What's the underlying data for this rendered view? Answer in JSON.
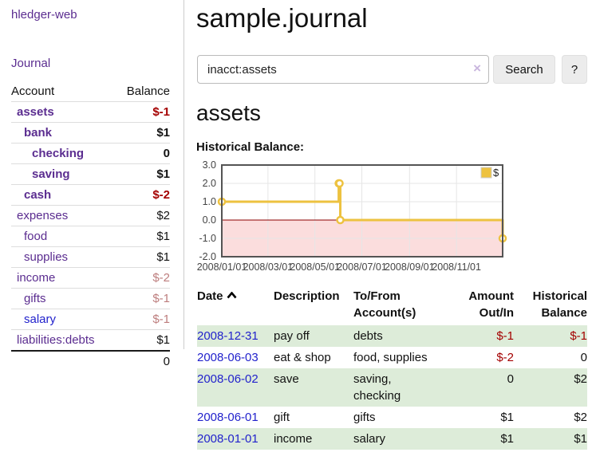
{
  "app_title": "hledger-web",
  "sidebar": {
    "nav_journal": "Journal",
    "accounts": {
      "header_account": "Account",
      "header_balance": "Balance",
      "rows": [
        {
          "name": "assets",
          "balance": "$-1",
          "depth": 1,
          "bold": true,
          "balance_style": "neg-strong",
          "link_style": "purple"
        },
        {
          "name": "bank",
          "balance": "$1",
          "depth": 2,
          "bold": true,
          "balance_style": "normal",
          "link_style": "purple"
        },
        {
          "name": "checking",
          "balance": "0",
          "depth": 3,
          "bold": true,
          "balance_style": "normal",
          "link_style": "purple"
        },
        {
          "name": "saving",
          "balance": "$1",
          "depth": 3,
          "bold": true,
          "balance_style": "normal",
          "link_style": "purple"
        },
        {
          "name": "cash",
          "balance": "$-2",
          "depth": 2,
          "bold": true,
          "balance_style": "neg-strong",
          "link_style": "purple"
        },
        {
          "name": "expenses",
          "balance": "$2",
          "depth": 1,
          "bold": false,
          "balance_style": "normal",
          "link_style": "purple"
        },
        {
          "name": "food",
          "balance": "$1",
          "depth": 2,
          "bold": false,
          "balance_style": "normal",
          "link_style": "purple"
        },
        {
          "name": "supplies",
          "balance": "$1",
          "depth": 2,
          "bold": false,
          "balance_style": "normal",
          "link_style": "purple"
        },
        {
          "name": "income",
          "balance": "$-2",
          "depth": 1,
          "bold": false,
          "balance_style": "neg-muted",
          "link_style": "purple"
        },
        {
          "name": "gifts",
          "balance": "$-1",
          "depth": 2,
          "bold": false,
          "balance_style": "neg-muted",
          "link_style": "purple"
        },
        {
          "name": "salary",
          "balance": "$-1",
          "depth": 2,
          "bold": false,
          "balance_style": "neg-muted",
          "link_style": "blue"
        },
        {
          "name": "liabilities:debts",
          "balance": "$1",
          "depth": 1,
          "bold": false,
          "balance_style": "normal",
          "link_style": "purple"
        }
      ],
      "total": "0"
    }
  },
  "main": {
    "title": "sample.journal",
    "search": {
      "value": "inacct:assets",
      "clear_icon": "×",
      "button_label": "Search",
      "help_label": "?"
    },
    "account_heading": "assets",
    "chart_title": "Historical Balance:"
  },
  "chart_data": {
    "type": "line",
    "style": "step",
    "title": "Historical Balance",
    "series": [
      {
        "name": "$",
        "color": "#edc240",
        "points": [
          {
            "date": "2008-01-01",
            "value": 1
          },
          {
            "date": "2008-06-01",
            "value": 2
          },
          {
            "date": "2008-06-02",
            "value": 2
          },
          {
            "date": "2008-06-03",
            "value": 0
          },
          {
            "date": "2008-12-31",
            "value": -1
          }
        ]
      }
    ],
    "x_range": [
      "2008-01-01",
      "2008-12-31"
    ],
    "x_ticks": [
      "2008/01/01",
      "2008/03/01",
      "2008/05/01",
      "2008/07/01",
      "2008/09/01",
      "2008/11/01"
    ],
    "y_ticks": [
      3.0,
      2.0,
      1.0,
      0.0,
      -1.0,
      -2.0
    ],
    "ylim": [
      -2,
      3
    ],
    "grid": true,
    "legend": {
      "label": "$",
      "position": "top-right"
    },
    "negative_region": {
      "from": 0,
      "to": -2,
      "fill": "#fbdddd",
      "line_color": "#8b0000"
    }
  },
  "register": {
    "headers": {
      "date": "Date",
      "sort_icon": "chevron-up",
      "description": "Description",
      "accounts": "To/From Account(s)",
      "amount": "Amount Out/In",
      "balance": "Historical Balance"
    },
    "rows": [
      {
        "date": "2008-12-31",
        "description": "pay off",
        "accounts": "debts",
        "amount": "$-1",
        "amount_negative": true,
        "balance": "$-1",
        "balance_negative": true
      },
      {
        "date": "2008-06-03",
        "description": "eat & shop",
        "accounts": "food, supplies",
        "amount": "$-2",
        "amount_negative": true,
        "balance": "0",
        "balance_negative": false
      },
      {
        "date": "2008-06-02",
        "description": "save",
        "accounts": "saving, checking",
        "amount": "0",
        "amount_negative": false,
        "balance": "$2",
        "balance_negative": false
      },
      {
        "date": "2008-06-01",
        "description": "gift",
        "accounts": "gifts",
        "amount": "$1",
        "amount_negative": false,
        "balance": "$2",
        "balance_negative": false
      },
      {
        "date": "2008-01-01",
        "description": "income",
        "accounts": "salary",
        "amount": "$1",
        "amount_negative": false,
        "balance": "$1",
        "balance_negative": false
      }
    ]
  },
  "colors": {
    "accent_purple": "#5b2d90",
    "link_blue": "#2222cc",
    "negative_strong": "#a40000",
    "negative_muted": "#bd7d7d",
    "row_stripe_green": "#ddecd9",
    "chart_series_yellow": "#edc240",
    "chart_negative_fill": "#fbdddd",
    "chart_zero_line": "#8b0000"
  }
}
